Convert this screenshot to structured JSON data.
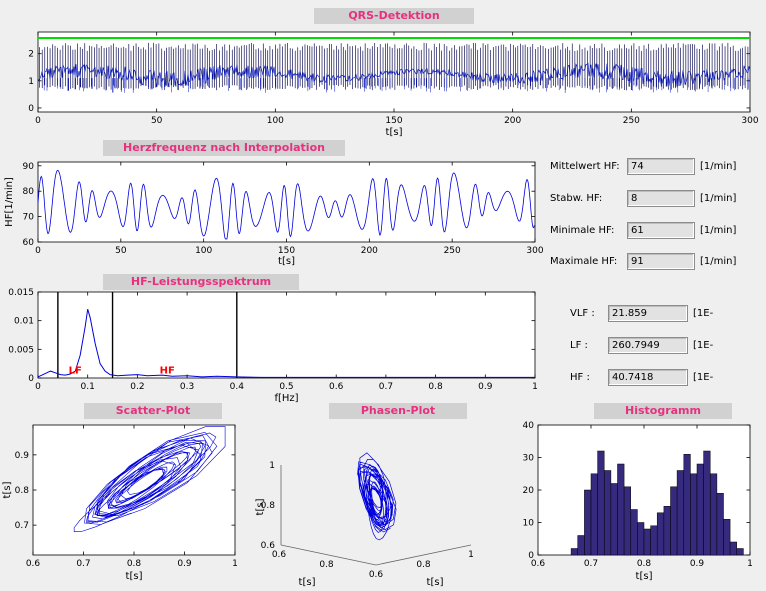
{
  "window": {
    "bg": "#efefef",
    "title_bg": "#d1d1d1",
    "title_color": "#e6317e"
  },
  "stats": {
    "rows": [
      {
        "label": "Mittelwert HF:",
        "value": "74",
        "unit": "[1/min]"
      },
      {
        "label": "Stabw. HF:",
        "value": "8",
        "unit": "[1/min]"
      },
      {
        "label": "Minimale HF:",
        "value": "61",
        "unit": "[1/min]"
      },
      {
        "label": "Maximale HF:",
        "value": "91",
        "unit": "[1/min]"
      }
    ],
    "power_rows": [
      {
        "label": "VLF :",
        "value": "21.859",
        "unit": "[1E-"
      },
      {
        "label": "LF :",
        "value": "260.7949",
        "unit": "[1E-"
      },
      {
        "label": "HF :",
        "value": "40.7418",
        "unit": "[1E-"
      }
    ]
  },
  "chart_data": [
    {
      "id": "qrs-detection",
      "type": "line",
      "title": "QRS-Detektion",
      "xlabel": "t[s]",
      "xlim": [
        0,
        300
      ],
      "xticks": [
        0,
        50,
        100,
        150,
        200,
        250,
        300
      ],
      "ylim": [
        -0.15,
        2.8
      ],
      "yticks": [
        0,
        1,
        2
      ],
      "signal_color": "#0011bb",
      "spike_color": "#14145a",
      "baseline": 1.22,
      "spike_top": 2.4,
      "spike_interval_s": 1.05,
      "threshold_y": 2.58,
      "threshold_color": "#00dd00",
      "description": "ECG trace with dense QRS spikes about once per second and a green detection threshold line near the top"
    },
    {
      "id": "heart-rate",
      "type": "line",
      "title": "Herzfrequenz nach Interpolation",
      "xlabel": "t[s]",
      "ylabel": "HF[1/min]",
      "xlim": [
        0,
        300
      ],
      "xticks": [
        0,
        50,
        100,
        150,
        200,
        250,
        300
      ],
      "ylim": [
        60,
        91.5
      ],
      "yticks": [
        60,
        70,
        80,
        90
      ],
      "line_color": "#0000dd",
      "oscillation_period_s": 10.4,
      "summary": {
        "mean": 74,
        "std": 8,
        "min": 61,
        "max": 91
      }
    },
    {
      "id": "power-spectrum",
      "type": "line",
      "title": "HF-Leistungsspektrum",
      "xlabel": "f[Hz]",
      "xlim": [
        0,
        1
      ],
      "xticks": [
        0,
        0.1,
        0.2,
        0.3,
        0.4,
        0.5,
        0.6,
        0.7,
        0.8,
        0.9,
        1
      ],
      "ylim": [
        0,
        0.015
      ],
      "yticks": [
        0,
        0.005,
        0.01,
        0.015
      ],
      "line_color": "#0000dd",
      "vlines": [
        0.04,
        0.15,
        0.4
      ],
      "points": [
        [
          0,
          0.0002
        ],
        [
          0.015,
          0.0008
        ],
        [
          0.025,
          0.0012
        ],
        [
          0.035,
          0.0009
        ],
        [
          0.045,
          0.0006
        ],
        [
          0.055,
          0.0005
        ],
        [
          0.065,
          0.0007
        ],
        [
          0.075,
          0.0012
        ],
        [
          0.085,
          0.004
        ],
        [
          0.095,
          0.009
        ],
        [
          0.1,
          0.012
        ],
        [
          0.105,
          0.0105
        ],
        [
          0.115,
          0.006
        ],
        [
          0.125,
          0.0025
        ],
        [
          0.135,
          0.0012
        ],
        [
          0.145,
          0.0006
        ],
        [
          0.16,
          0.0004
        ],
        [
          0.18,
          0.0005
        ],
        [
          0.2,
          0.0006
        ],
        [
          0.22,
          0.0004
        ],
        [
          0.25,
          0.0005
        ],
        [
          0.27,
          0.0003
        ],
        [
          0.3,
          0.0004
        ],
        [
          0.33,
          0.0002
        ],
        [
          0.36,
          0.0003
        ],
        [
          0.4,
          0.0002
        ],
        [
          0.45,
          0.0001
        ],
        [
          0.5,
          0.0001
        ],
        [
          0.6,
          0.0001
        ],
        [
          0.7,
          0.0001
        ],
        [
          0.8,
          0.0001
        ],
        [
          0.9,
          0.0001
        ],
        [
          1,
          0.0001
        ]
      ],
      "annotations": [
        {
          "text": "LF",
          "x": 0.075,
          "y": 0.0008,
          "color": "#ff0000"
        },
        {
          "text": "HF",
          "x": 0.26,
          "y": 0.0008,
          "color": "#ff0000"
        }
      ]
    },
    {
      "id": "scatter",
      "type": "line",
      "title": "Scatter-Plot",
      "xlabel": "t[s]",
      "ylabel": "t[s]",
      "xlim": [
        0.6,
        1
      ],
      "xticks": [
        0.6,
        0.7,
        0.8,
        0.9,
        1
      ],
      "ylim": [
        0.615,
        0.985
      ],
      "yticks": [
        0.7,
        0.8,
        0.9
      ],
      "line_color": "#0000dd",
      "description": "Poincare-style scatter of successive RR intervals, dense blue loops between 0.65 and 1.0 s"
    },
    {
      "id": "phase",
      "type": "line3d",
      "title": "Phasen-Plot",
      "xlabel": "t[s]",
      "ylabel": "t[s]",
      "zlabel": "t[s]",
      "lim": [
        0.6,
        1
      ],
      "xticks_edge": [
        0.6,
        0.8,
        1
      ],
      "yticks_edge": [
        0.6,
        0.8
      ],
      "zticks": [
        0.6,
        0.8,
        1
      ],
      "line_color": "#0000dd",
      "description": "3D phase-space trajectory of RR intervals (r_k, r_k+1, r_k+2)"
    },
    {
      "id": "histogram",
      "type": "bar",
      "title": "Histogramm",
      "xlabel": "t[s]",
      "xlim": [
        0.6,
        1
      ],
      "xticks": [
        0.6,
        0.7,
        0.8,
        0.9,
        1
      ],
      "ylim": [
        0,
        40
      ],
      "yticks": [
        0,
        10,
        20,
        30,
        40
      ],
      "bar_color": "#352a7e",
      "bin_start": 0.6625,
      "bin_width": 0.0125,
      "values": [
        2,
        6,
        20,
        25,
        32,
        26,
        22,
        28,
        21,
        14,
        10,
        8,
        9,
        13,
        15,
        21,
        26,
        31,
        25,
        28,
        32,
        25,
        19,
        11,
        4,
        2
      ]
    }
  ]
}
